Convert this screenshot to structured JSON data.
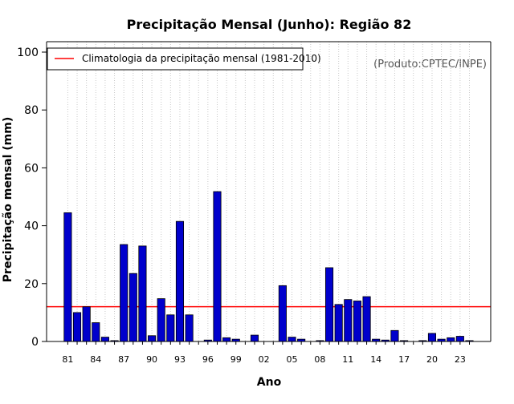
{
  "chart_data": {
    "type": "bar",
    "title": "Precipitação Mensal (Junho): Região 82",
    "xlabel": "Ano",
    "ylabel": "Precipitação mensal (mm)",
    "source_note": "(Produto:CPTEC/INPE)",
    "ylim": [
      0,
      100
    ],
    "yticks": [
      0,
      20,
      40,
      60,
      80,
      100
    ],
    "years": [
      1981,
      1982,
      1983,
      1984,
      1985,
      1986,
      1987,
      1988,
      1989,
      1990,
      1991,
      1992,
      1993,
      1994,
      1995,
      1996,
      1997,
      1998,
      1999,
      2000,
      2001,
      2002,
      2003,
      2004,
      2005,
      2006,
      2007,
      2008,
      2009,
      2010,
      2011,
      2012,
      2013,
      2014,
      2015,
      2016,
      2017,
      2018,
      2019,
      2020,
      2021,
      2022,
      2023,
      2024
    ],
    "xtick_labels": [
      {
        "year": 1981,
        "label": "81"
      },
      {
        "year": 1984,
        "label": "84"
      },
      {
        "year": 1987,
        "label": "87"
      },
      {
        "year": 1990,
        "label": "90"
      },
      {
        "year": 1993,
        "label": "93"
      },
      {
        "year": 1996,
        "label": "96"
      },
      {
        "year": 1999,
        "label": "99"
      },
      {
        "year": 2002,
        "label": "02"
      },
      {
        "year": 2005,
        "label": "05"
      },
      {
        "year": 2008,
        "label": "08"
      },
      {
        "year": 2011,
        "label": "11"
      },
      {
        "year": 2014,
        "label": "14"
      },
      {
        "year": 2017,
        "label": "17"
      },
      {
        "year": 2020,
        "label": "20"
      },
      {
        "year": 2023,
        "label": "23"
      }
    ],
    "series": [
      {
        "name": "Precipitação mensal",
        "color": "#0000cc",
        "values": [
          44.5,
          10.0,
          12.0,
          6.5,
          1.5,
          0.3,
          33.5,
          23.5,
          33.0,
          2.0,
          14.8,
          9.2,
          41.5,
          9.2,
          0,
          0.5,
          51.8,
          1.3,
          0.8,
          0,
          2.2,
          0,
          0,
          19.3,
          1.5,
          0.8,
          0,
          0.3,
          25.5,
          12.8,
          14.5,
          14.0,
          15.5,
          0.8,
          0.5,
          3.8,
          0.3,
          0,
          0.3,
          2.8,
          0.8,
          1.3,
          1.8,
          0.3
        ]
      }
    ],
    "climatology": {
      "label": "Climatologia da precipitação mensal (1981-2010)",
      "value": 12.0,
      "color": "#ff0000"
    },
    "legend_position": "top-left",
    "grid": "vertical dotted"
  }
}
